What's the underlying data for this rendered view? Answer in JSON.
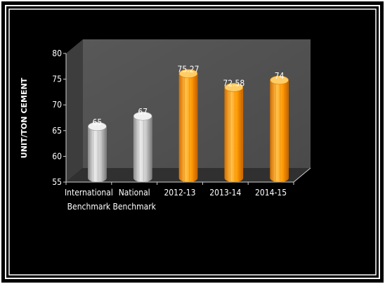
{
  "chart_data": {
    "type": "bar",
    "title": "",
    "xlabel": "",
    "ylabel": "UNIT/TON CEMENT",
    "ylim": [
      55,
      80
    ],
    "yticks": [
      55,
      60,
      65,
      70,
      75,
      80
    ],
    "grid": false,
    "legend": "none",
    "categories": [
      [
        "International",
        "Benchmark"
      ],
      [
        "National",
        "Benchmark"
      ],
      [
        "2012-13"
      ],
      [
        "2013-14"
      ],
      [
        "2014-15"
      ]
    ],
    "series": [
      {
        "values": [
          65,
          67,
          75.27,
          72.58,
          74
        ],
        "labels": [
          "65",
          "67",
          "75.27",
          "72.58",
          "74"
        ]
      }
    ],
    "colors": {
      "benchmark": "#c4c4c4",
      "actual": "#ff9900",
      "background": "#000000"
    }
  }
}
